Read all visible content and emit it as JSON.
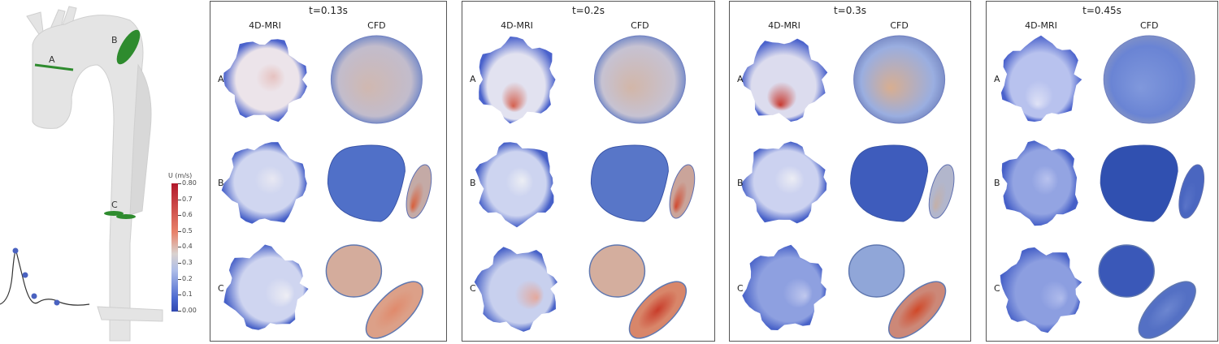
{
  "aorta": {
    "section_labels": [
      "A",
      "B",
      "C"
    ],
    "section_color": "#2e8b2e",
    "waveform_dots": 4
  },
  "colorbar": {
    "title": "U (m/s)",
    "ticks": [
      "0.80",
      "0.7",
      "0.6",
      "0.5",
      "0.4",
      "0.3",
      "0.2",
      "0.1",
      "0.00"
    ],
    "colormap": [
      "#3048b0",
      "#d9d2cf",
      "#b2182b"
    ]
  },
  "panels": [
    {
      "time": "t=0.13s",
      "col_mri": "4D-MRI",
      "col_cfd": "CFD",
      "rows": [
        "A",
        "B",
        "C"
      ],
      "mri": [
        {
          "core": "#ece4ea",
          "hot": "#e6c2c0",
          "edge": "#4a62cc"
        },
        {
          "core": "#d0d6f0",
          "hot": "#e8e8f2",
          "edge": "#4660c8"
        },
        {
          "core": "#cfd5f0",
          "hot": "#eeeef4",
          "edge": "#4862c8"
        }
      ],
      "cfd": [
        {
          "fill": "#c2bccc",
          "hot": "#d0b8b0"
        },
        {
          "fill": "#5070c8",
          "small": "#c4aaa6",
          "smallhot": "#d8603c"
        },
        {
          "fill": "#d4ac9c",
          "small": "#dca088",
          "smallhot": "#e08a6c"
        }
      ]
    },
    {
      "time": "t=0.2s",
      "col_mri": "4D-MRI",
      "col_cfd": "CFD",
      "rows": [
        "A",
        "B",
        "C"
      ],
      "mri": [
        {
          "core": "#e2e2f0",
          "hot": "#d4604e",
          "edge": "#4a62cc"
        },
        {
          "core": "#cdd4f0",
          "hot": "#eceef4",
          "edge": "#4660c8"
        },
        {
          "core": "#c8d0ee",
          "hot": "#e4a89c",
          "edge": "#4862c8"
        }
      ],
      "cfd": [
        {
          "fill": "#c6c2d2",
          "hot": "#d2b6a8"
        },
        {
          "fill": "#5876c8",
          "small": "#caa49a",
          "smallhot": "#d04a30"
        },
        {
          "fill": "#d4ae9e",
          "small": "#d8866a",
          "smallhot": "#c83c2a"
        }
      ]
    },
    {
      "time": "t=0.3s",
      "col_mri": "4D-MRI",
      "col_cfd": "CFD",
      "rows": [
        "A",
        "B",
        "C"
      ],
      "mri": [
        {
          "core": "#dcdcee",
          "hot": "#c83a30",
          "edge": "#4a62cc"
        },
        {
          "core": "#ccd2f0",
          "hot": "#ecedf4",
          "edge": "#4660c8"
        },
        {
          "core": "#8ea0e0",
          "hot": "#c0c8ee",
          "edge": "#4862c8"
        }
      ],
      "cfd": [
        {
          "fill": "#9aaee0",
          "hot": "#d8ae90"
        },
        {
          "fill": "#3e5cbc",
          "small": "#b2b6cc",
          "smallhot": "#c4b0a8"
        },
        {
          "fill": "#90a6d8",
          "small": "#cc8878",
          "smallhot": "#d04828"
        }
      ]
    },
    {
      "time": "t=0.45s",
      "col_mri": "4D-MRI",
      "col_cfd": "CFD",
      "rows": [
        "A",
        "B",
        "C"
      ],
      "mri": [
        {
          "core": "#b8c2ee",
          "hot": "#dfe2f6",
          "edge": "#4a62cc"
        },
        {
          "core": "#93a4e2",
          "hot": "#b8c2ee",
          "edge": "#4660c8"
        },
        {
          "core": "#8c9ee0",
          "hot": "#b0bcec",
          "edge": "#4862c8"
        }
      ],
      "cfd": [
        {
          "fill": "#6a84d4",
          "hot": "#8098dc"
        },
        {
          "fill": "#3050b0",
          "small": "#4a66c0",
          "smallhot": "#5a74c8"
        },
        {
          "fill": "#3a58b8",
          "small": "#5470c4",
          "smallhot": "#6c86d0"
        }
      ]
    }
  ]
}
